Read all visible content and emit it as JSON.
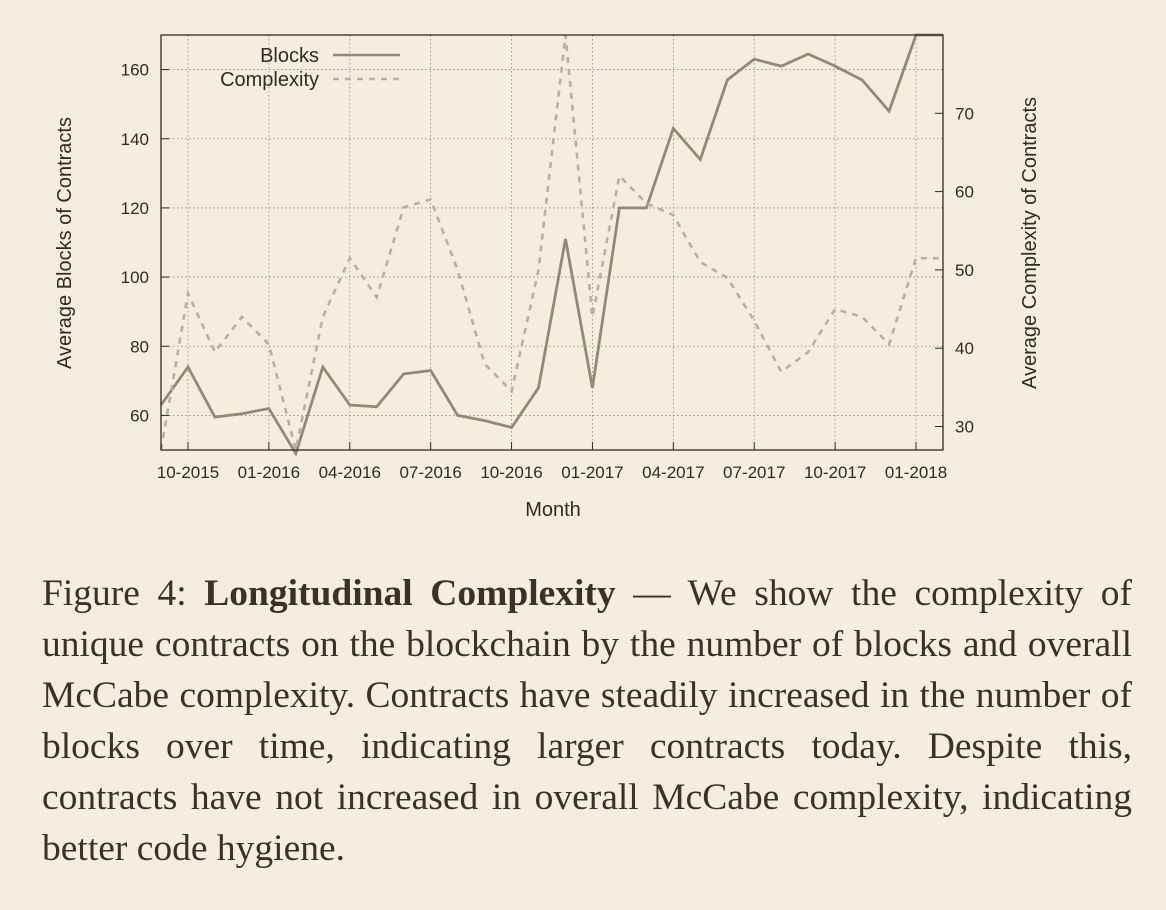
{
  "chart_data": {
    "type": "line",
    "xlabel": "Month",
    "ylabel_left": "Average Blocks of Contracts",
    "ylabel_right": "Average Complexity of Contracts",
    "x_ticks": [
      "10-2015",
      "01-2016",
      "04-2016",
      "07-2016",
      "10-2016",
      "01-2017",
      "04-2017",
      "07-2017",
      "10-2017",
      "01-2018"
    ],
    "x": [
      "09-2015",
      "10-2015",
      "11-2015",
      "12-2015",
      "01-2016",
      "02-2016",
      "03-2016",
      "04-2016",
      "05-2016",
      "06-2016",
      "07-2016",
      "08-2016",
      "09-2016",
      "10-2016",
      "11-2016",
      "12-2016",
      "01-2017",
      "02-2017",
      "03-2017",
      "04-2017",
      "05-2017",
      "06-2017",
      "07-2017",
      "08-2017",
      "09-2017",
      "10-2017",
      "11-2017",
      "12-2017",
      "01-2018",
      "02-2018"
    ],
    "ylim_left": [
      50,
      170
    ],
    "yticks_left": [
      60,
      80,
      100,
      120,
      140,
      160
    ],
    "ylim_right": [
      27,
      80
    ],
    "yticks_right": [
      30,
      40,
      50,
      60,
      70
    ],
    "grid": true,
    "legend_position": "top-left",
    "series": [
      {
        "name": "Blocks",
        "axis": "left",
        "style": "solid",
        "color": "#948979",
        "values": [
          63,
          74,
          59.5,
          60.5,
          62,
          49,
          74,
          63,
          62.5,
          72,
          73,
          60,
          58.5,
          56.5,
          68,
          111,
          68,
          120,
          120,
          143,
          134,
          157,
          163,
          161,
          164.5,
          161,
          157,
          148,
          170,
          170
        ]
      },
      {
        "name": "Complexity",
        "axis": "right",
        "style": "dashed",
        "color": "#b9b0a3",
        "values": [
          27,
          47,
          39.5,
          44,
          40.5,
          27,
          44,
          51.5,
          46.5,
          58,
          59,
          50,
          38,
          34.5,
          50,
          80,
          44,
          62,
          58.5,
          57,
          51,
          49,
          43.5,
          37,
          39.5,
          45,
          44,
          40.5,
          51.5,
          51.5
        ]
      }
    ]
  },
  "caption": {
    "prefix": "Figure 4: ",
    "bold": "Longitudinal Complexity",
    "body": " — We show the complexity of unique contracts on the blockchain by the number of blocks and overall McCabe complexity. Contracts have steadily increased in the number of blocks over time, indicating larger contracts today. Despite this, contracts have not increased in overall McCabe complexity, indicating better code hygiene."
  }
}
